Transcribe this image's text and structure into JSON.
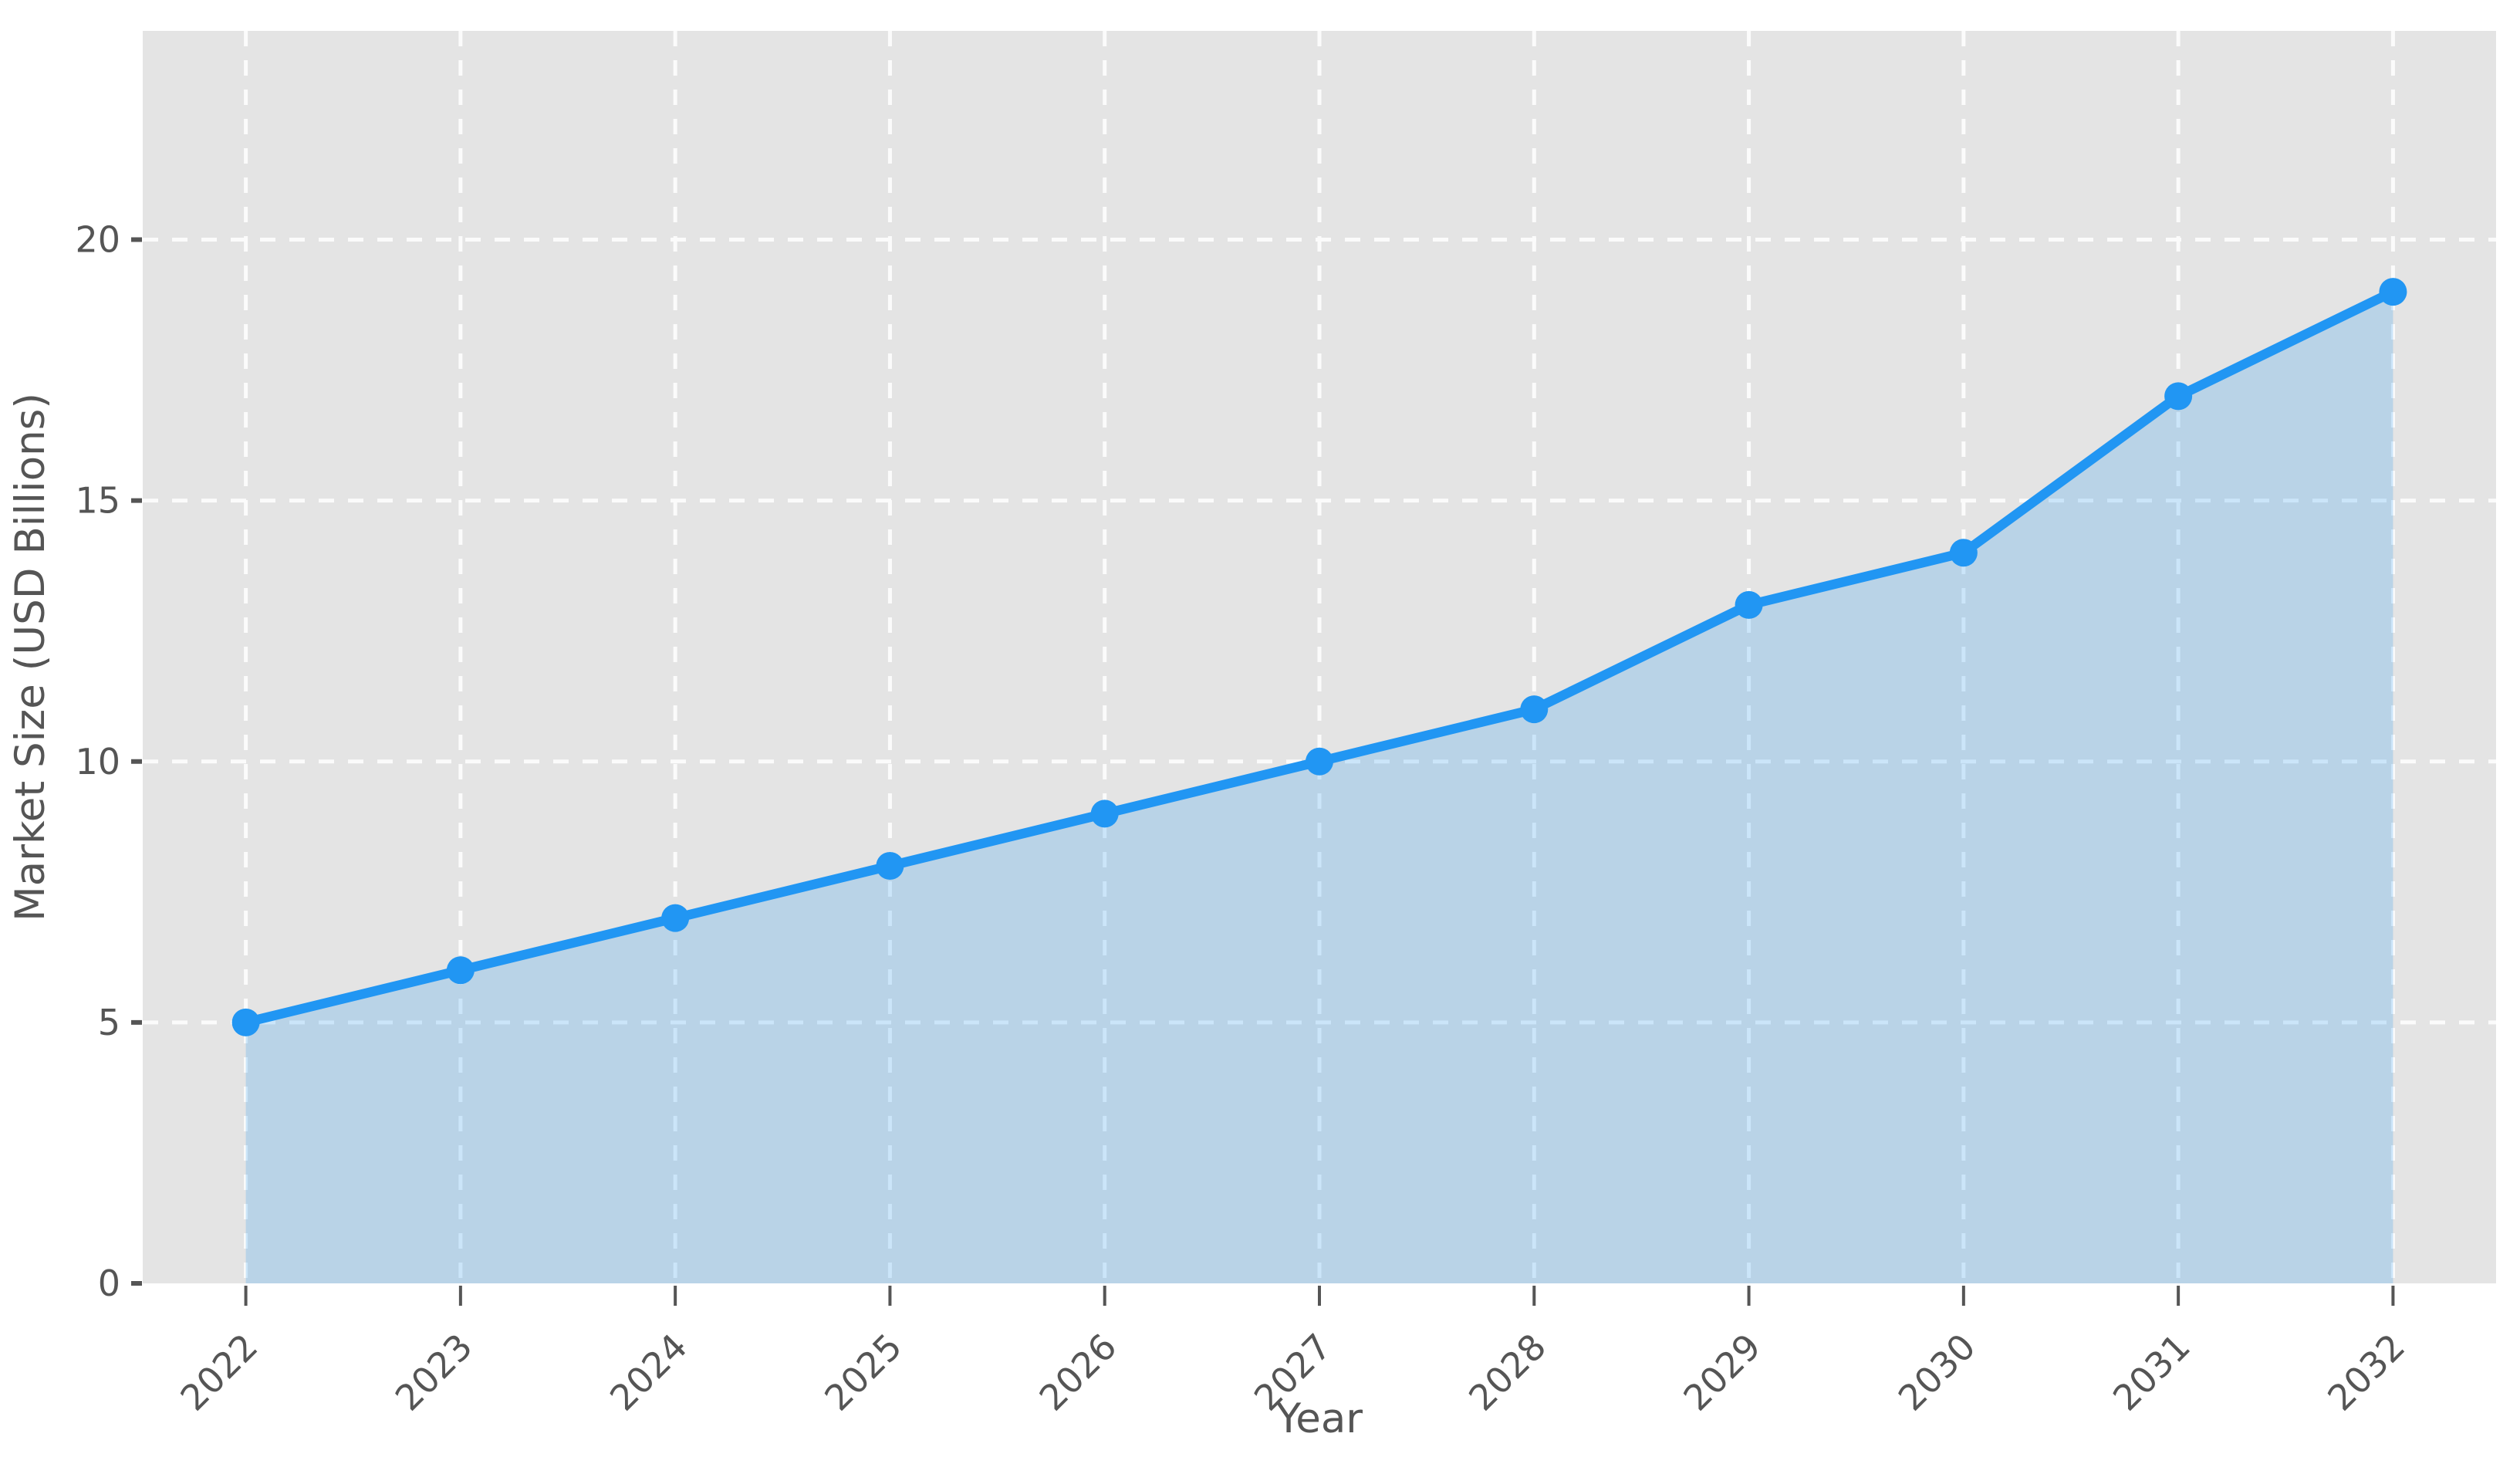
{
  "chart_data": {
    "type": "area",
    "series_name": "Market Size",
    "categories": [
      "2022",
      "2023",
      "2024",
      "2025",
      "2026",
      "2027",
      "2028",
      "2029",
      "2030",
      "2031",
      "2032"
    ],
    "values": [
      5,
      6,
      7,
      8,
      9,
      10,
      11,
      13,
      14,
      17,
      19
    ],
    "xlabel": "Year",
    "ylabel": "Market Size (USD Billions)",
    "ylim": [
      0,
      24
    ],
    "yticks": [
      0,
      5,
      10,
      15,
      20
    ],
    "xtick_rotation_deg": 45,
    "grid": {
      "visible": true,
      "style": "dashed"
    },
    "legend_position": "none",
    "marker": "circle",
    "colors": {
      "line": "#2196F3",
      "marker": "#2196F3",
      "fill": "rgba(33,150,243,0.22)",
      "plot_background": "#E4E4E4",
      "grid": "#FBFBFB",
      "text": "#555555",
      "tick": "#555555",
      "figure_background": "#FFFFFF"
    }
  }
}
